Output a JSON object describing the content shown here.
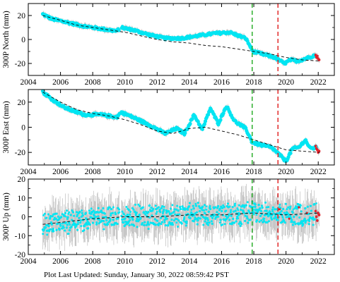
{
  "footer": {
    "label": "Plot Last Updated:",
    "value": "Sunday, January 30, 2022 08:59:42 PST"
  },
  "colors": {
    "observed": "#00e5f2",
    "error_bars": "#b3b3b3",
    "model": "#000000",
    "recent": "#e0202a",
    "green_line": "#1faa1f",
    "red_line": "#e01c1c"
  },
  "chart_data": [
    {
      "type": "scatter",
      "ylabel": "300P North (mm)",
      "xlim": [
        2004,
        2023
      ],
      "ylim": [
        -30,
        30
      ],
      "xticks": [
        2004,
        2006,
        2008,
        2010,
        2012,
        2014,
        2016,
        2018,
        2020,
        2022
      ],
      "yticks": [
        -20,
        0,
        20
      ],
      "grid": false,
      "vlines": [
        {
          "x": 2017.9,
          "color": "green",
          "style": "dashed"
        },
        {
          "x": 2019.5,
          "color": "red",
          "style": "dashed"
        }
      ],
      "observed": {
        "x": [
          2004.9,
          2005.5,
          2006.5,
          2007.5,
          2008.5,
          2009.5,
          2009.75,
          2010.5,
          2011.5,
          2012.5,
          2013.5,
          2014.5,
          2015.5,
          2016.5,
          2017.5,
          2017.95,
          2018.5,
          2019.3,
          2019.9,
          2020.3,
          2020.7,
          2021.2,
          2021.8
        ],
        "y": [
          21,
          17,
          14,
          11,
          9,
          7,
          10,
          8,
          4,
          1,
          1,
          3,
          5,
          6,
          1,
          -10,
          -12,
          -15,
          -20,
          -17,
          -18,
          -16,
          -13
        ]
      },
      "model": {
        "x": [
          2004.9,
          2006,
          2007,
          2008,
          2009,
          2010,
          2011,
          2012,
          2013,
          2014,
          2015,
          2016,
          2017,
          2018,
          2019,
          2020,
          2021,
          2022.1
        ],
        "y": [
          20,
          16,
          12,
          10,
          8,
          6,
          3,
          0,
          -2,
          -3,
          -5,
          -6,
          -8,
          -10,
          -12,
          -15,
          -17,
          -18
        ]
      },
      "recent": {
        "x": [
          2021.85,
          2021.9,
          2021.95,
          2022.0,
          2022.05
        ],
        "y": [
          -13,
          -15,
          -14,
          -16,
          -17
        ]
      }
    },
    {
      "type": "scatter",
      "ylabel": "300P East (mm)",
      "xlim": [
        2004,
        2023
      ],
      "ylim": [
        -30,
        30
      ],
      "xticks": [
        2004,
        2006,
        2008,
        2010,
        2012,
        2014,
        2016,
        2018,
        2020,
        2022
      ],
      "yticks": [
        -20,
        0,
        20
      ],
      "grid": false,
      "vlines": [
        {
          "x": 2017.9,
          "color": "green",
          "style": "dashed"
        },
        {
          "x": 2019.5,
          "color": "red",
          "style": "dashed"
        }
      ],
      "observed": {
        "x": [
          2004.9,
          2005.5,
          2006.2,
          2007,
          2007.5,
          2008.5,
          2009.5,
          2009.75,
          2010.5,
          2011.5,
          2012.5,
          2013.2,
          2013.7,
          2014.3,
          2014.8,
          2015.3,
          2015.8,
          2016.3,
          2016.8,
          2017.5,
          2017.9,
          2018.4,
          2019.1,
          2019.6,
          2020.0,
          2020.4,
          2020.8,
          2021.2,
          2021.5,
          2021.9
        ],
        "y": [
          28,
          22,
          16,
          12,
          10,
          10,
          8,
          12,
          8,
          2,
          -5,
          -1,
          -5,
          10,
          -2,
          15,
          3,
          17,
          5,
          -1,
          -12,
          -14,
          -16,
          -22,
          -27,
          -17,
          -16,
          -10,
          -17,
          -16
        ]
      },
      "model": {
        "x": [
          2004.9,
          2006,
          2007,
          2008,
          2009,
          2010,
          2011,
          2012,
          2013,
          2014,
          2015,
          2016,
          2017,
          2018,
          2019,
          2020,
          2021,
          2022.1
        ],
        "y": [
          28,
          20,
          14,
          11,
          9,
          6,
          2,
          -3,
          -5,
          -1,
          0,
          -3,
          -6,
          -10,
          -14,
          -18,
          -19,
          -20
        ]
      },
      "recent": {
        "x": [
          2021.85,
          2021.9,
          2021.95,
          2022.0,
          2022.05
        ],
        "y": [
          -15,
          -17,
          -18,
          -20,
          -19
        ]
      }
    },
    {
      "type": "scatter",
      "ylabel": "300P Up (mm)",
      "xlim": [
        2004,
        2023
      ],
      "ylim": [
        -20,
        20
      ],
      "xticks": [
        2004,
        2006,
        2008,
        2010,
        2012,
        2014,
        2016,
        2018,
        2020,
        2022
      ],
      "yticks": [
        -20,
        -10,
        0,
        10,
        20
      ],
      "grid": false,
      "vlines": [
        {
          "x": 2017.9,
          "color": "green",
          "style": "dashed"
        },
        {
          "x": 2019.5,
          "color": "red",
          "style": "dashed"
        }
      ],
      "observed": {
        "x": [
          2004.9,
          2006,
          2007,
          2008,
          2009,
          2010,
          2011,
          2012,
          2013,
          2014,
          2015,
          2016,
          2017,
          2018,
          2019,
          2020,
          2021,
          2021.9
        ],
        "y": [
          -4,
          -3,
          -2,
          -1,
          0,
          0,
          0,
          0,
          0,
          1,
          1,
          1,
          1,
          2,
          2,
          1,
          1,
          2
        ]
      },
      "model": {
        "x": [
          2004.9,
          2006,
          2008,
          2010,
          2012,
          2014,
          2016,
          2018,
          2020,
          2022.1
        ],
        "y": [
          -4,
          -3,
          -1,
          0,
          0,
          1,
          1,
          2,
          1,
          2
        ]
      },
      "recent": {
        "x": [
          2021.85,
          2021.9,
          2021.95,
          2022.0,
          2022.05
        ],
        "y": [
          3,
          0,
          -2,
          2,
          1
        ]
      }
    }
  ]
}
